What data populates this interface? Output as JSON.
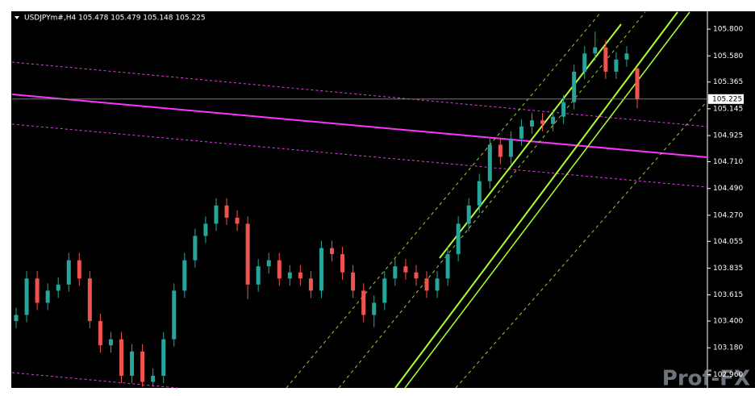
{
  "chart_data": {
    "type": "candlestick",
    "title": "USDJPYm#,H4  105.478 105.479 105.148 105.225",
    "watermark": "Prof-FX",
    "up_color": "#26a69a",
    "down_color": "#ef5350",
    "current_price": 105.225,
    "ylim": [
      102.85,
      105.94
    ],
    "yticks": [
      {
        "value": 105.8,
        "label": "105.800"
      },
      {
        "value": 105.58,
        "label": "105.580"
      },
      105.365,
      105.145,
      104.925,
      {
        "value": 104.71,
        "label": "104.710"
      },
      {
        "value": 104.49,
        "label": "104.490"
      },
      {
        "value": 104.27,
        "label": "104.270"
      },
      104.055,
      103.835,
      103.615,
      {
        "value": 103.4,
        "label": "103.400"
      },
      {
        "value": 103.18,
        "label": "103.180"
      },
      {
        "value": 102.96,
        "label": "102.960"
      }
    ],
    "open": [
      103.4,
      103.45,
      103.75,
      103.55,
      103.65,
      103.7,
      103.9,
      103.75,
      103.4,
      103.2,
      103.25,
      102.95,
      103.15,
      102.9,
      102.95,
      103.25,
      103.65,
      103.9,
      104.1,
      104.2,
      104.35,
      104.25,
      104.2,
      103.7,
      103.85,
      103.9,
      103.75,
      103.8,
      103.75,
      103.65,
      104.0,
      103.95,
      103.8,
      103.65,
      103.45,
      103.55,
      103.75,
      103.85,
      103.8,
      103.75,
      103.65,
      103.75,
      103.95,
      104.2,
      104.35,
      104.55,
      104.85,
      104.75,
      104.9,
      105.0,
      105.05,
      105.02,
      105.08,
      105.2,
      105.45,
      105.6,
      105.65,
      105.45,
      105.55,
      105.478
    ],
    "high": [
      103.51,
      103.81,
      103.81,
      103.71,
      103.76,
      103.96,
      103.96,
      103.81,
      103.46,
      103.31,
      103.31,
      103.21,
      103.21,
      103.01,
      103.31,
      103.71,
      103.96,
      104.16,
      104.26,
      104.41,
      104.41,
      104.31,
      104.26,
      103.91,
      103.96,
      103.96,
      103.86,
      103.86,
      103.81,
      104.06,
      104.06,
      104.01,
      103.86,
      103.71,
      103.61,
      103.81,
      103.91,
      103.91,
      103.86,
      103.81,
      103.81,
      104.01,
      104.26,
      104.41,
      104.61,
      104.91,
      104.91,
      104.96,
      105.06,
      105.11,
      105.11,
      105.14,
      105.26,
      105.51,
      105.66,
      105.78,
      105.71,
      105.61,
      105.66,
      105.479
    ],
    "low": [
      103.34,
      103.39,
      103.49,
      103.49,
      103.59,
      103.64,
      103.69,
      103.34,
      103.14,
      103.14,
      102.89,
      102.89,
      102.86,
      102.86,
      102.89,
      103.19,
      103.59,
      103.84,
      104.04,
      104.14,
      104.19,
      104.14,
      103.58,
      103.64,
      103.79,
      103.69,
      103.69,
      103.69,
      103.59,
      103.59,
      103.89,
      103.74,
      103.59,
      103.39,
      103.35,
      103.49,
      103.69,
      103.74,
      103.69,
      103.59,
      103.59,
      103.69,
      103.89,
      104.14,
      104.29,
      104.49,
      104.69,
      104.69,
      104.84,
      104.94,
      104.96,
      104.96,
      105.02,
      105.14,
      105.39,
      105.54,
      105.39,
      105.39,
      105.49,
      105.148
    ],
    "close": [
      103.45,
      103.75,
      103.55,
      103.65,
      103.7,
      103.9,
      103.75,
      103.4,
      103.2,
      103.25,
      102.95,
      103.15,
      102.9,
      102.95,
      103.25,
      103.65,
      103.9,
      104.1,
      104.2,
      104.35,
      104.25,
      104.2,
      103.7,
      103.85,
      103.9,
      103.75,
      103.8,
      103.75,
      103.65,
      104.0,
      103.95,
      103.8,
      103.65,
      103.45,
      103.55,
      103.75,
      103.85,
      103.8,
      103.75,
      103.65,
      103.75,
      103.95,
      104.2,
      104.35,
      104.55,
      104.85,
      104.75,
      104.9,
      105.0,
      105.05,
      105.02,
      105.08,
      105.2,
      105.45,
      105.6,
      105.65,
      105.45,
      105.55,
      105.6,
      105.225
    ]
  }
}
